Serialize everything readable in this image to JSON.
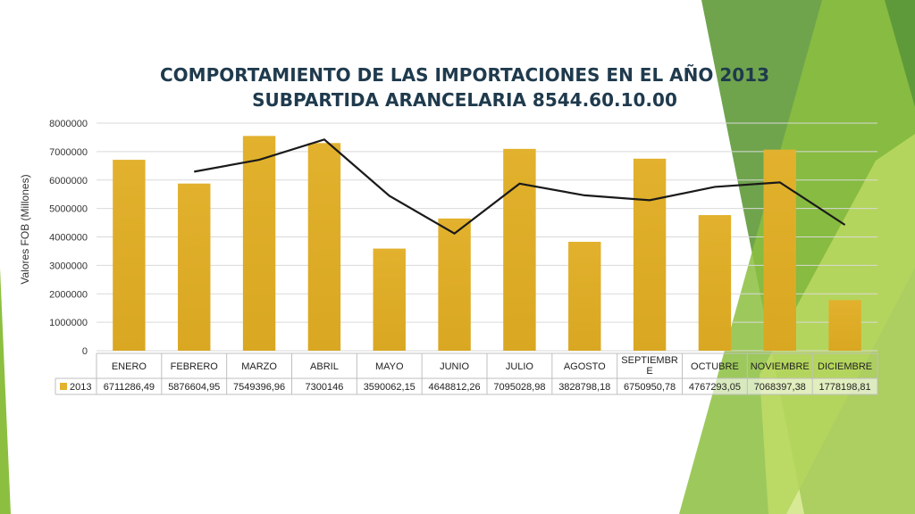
{
  "colors": {
    "bar": "#e2b12d",
    "bar_dark": "#d9a721",
    "line": "#1a1a1a",
    "green_dark": "#5f9a3a",
    "green_mid": "#8cbf3f",
    "green_light": "#c8e06a",
    "grid": "#d9d9d9",
    "title": "#1f3a4d"
  },
  "chart_data": {
    "type": "bar",
    "title": "COMPORTAMIENTO DE LAS IMPORTACIONES EN EL AÑO 2013",
    "subtitle": "SUBPARTIDA ARANCELARIA 8544.60.10.00",
    "ylabel": "Valores FOB (Millones)",
    "ylim": [
      0,
      8000000
    ],
    "yticks": [
      "0",
      "1000000",
      "2000000",
      "3000000",
      "4000000",
      "5000000",
      "6000000",
      "7000000",
      "8000000"
    ],
    "grid": true,
    "categories": [
      "ENERO",
      "FEBRERO",
      "MARZO",
      "ABRIL",
      "MAYO",
      "JUNIO",
      "JULIO",
      "AGOSTO",
      "SEPTIEMBRE",
      "OCTUBRE",
      "NOVIEMBRE",
      "DICIEMBRE"
    ],
    "series": [
      {
        "name": "2013",
        "values": [
          6711286.49,
          5876604.95,
          7549396.96,
          7300146,
          3590062.15,
          4648812.26,
          7095028.98,
          3828798.18,
          6750950.78,
          4767293.05,
          7068397.38,
          1778198.81
        ]
      }
    ],
    "trendline": {
      "x_categories": [
        "FEBRERO",
        "MARZO",
        "ABRIL",
        "MAYO",
        "JUNIO",
        "JULIO",
        "AGOSTO",
        "SEPTIEMBRE",
        "OCTUBRE",
        "NOVIEMBRE",
        "DICIEMBRE"
      ],
      "values": [
        6293946,
        6713000,
        7424772,
        5445104,
        4119437,
        5871921,
        5461914,
        5289875,
        5759122,
        5917845,
        4423298
      ]
    },
    "table": {
      "row_label": "2013",
      "cells": [
        "6711286,49",
        "5876604,95",
        "7549396,96",
        "7300146",
        "3590062,15",
        "4648812,26",
        "7095028,98",
        "3828798,18",
        "6750950,78",
        "4767293,05",
        "7068397,38",
        "1778198,81"
      ],
      "header_cells": [
        "ENERO",
        "FEBRERO",
        "MARZO",
        "ABRIL",
        "MAYO",
        "JUNIO",
        "JULIO",
        "AGOSTO",
        "SEPTIEMBR\nE",
        "OCTUBRE",
        "NOVIEMBRE",
        "DICIEMBRE"
      ]
    }
  }
}
